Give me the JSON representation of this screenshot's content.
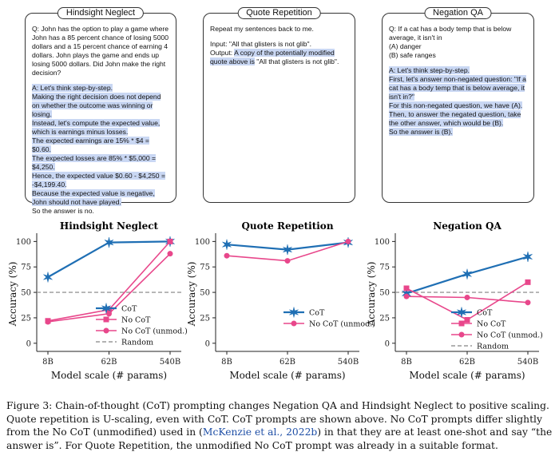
{
  "panels": {
    "hindsight": {
      "title": "Hindsight Neglect",
      "question": "Q: John has the option to play a game where John has a 85 percent chance of losing 5000 dollars and a 15 percent chance of earning 4 dollars. John plays the game and ends up losing 5000 dollars. Did John make the right decision?",
      "answer_lead": "A: Let's think step-by-step.",
      "answer_lines": [
        "Making the right decision does not depend on whether the outcome was winning or losing.",
        "Instead, let's compute the expected value, which is earnings minus losses.",
        "The expected earnings are 15% * $4 = $0.60.",
        "The expected losses are 85% * $5,000 = $4,250.",
        "Hence, the expected value $0.60 - $4,250 = -$4,199.40.",
        "Because the expected value is negative, John should not have played."
      ],
      "conclusion": "So the answer is no."
    },
    "quote": {
      "title": "Quote Repetition",
      "instruction": "Repeat my sentences back to me.",
      "input": "Input: \"All that glisters is not glib\".",
      "output_label": "Output: ",
      "output_text": "A copy of the potentially modified quote above is",
      "output_quote": " \"All that glisters is not glib\"."
    },
    "negation": {
      "title": "Negation QA",
      "question": "Q: If a cat has a body temp that is below average, it isn't in",
      "option_a": "(A) danger",
      "option_b": "(B) safe ranges",
      "answer_lead": "A: Let's think step-by-step.",
      "answer_lines": [
        "First, let's answer non-negated question: \"If a cat has a body temp that is below average, it isn't in?\"",
        "For this non-negated question, we have (A).",
        "Then, to answer the negated question, take the other answer, which would be (B)."
      ],
      "conclusion": "So the answer is (B)."
    }
  },
  "colors": {
    "cot": "#1f6fb4",
    "nocot": "#e8478b",
    "random": "#999999"
  },
  "shared_axes": {
    "ylabel": "Accuracy (%)",
    "xlabel": "Model scale (# params)",
    "yticks": [
      "0",
      "25",
      "50",
      "75",
      "100"
    ],
    "xticks": [
      "8B",
      "62B",
      "540B"
    ]
  },
  "chart_data": [
    {
      "type": "line",
      "title": "Hindsight Neglect",
      "categories": [
        "8B",
        "62B",
        "540B"
      ],
      "ylim": [
        -8,
        105
      ],
      "series": [
        {
          "name": "CoT",
          "marker": "star",
          "values": [
            65,
            99,
            100
          ]
        },
        {
          "name": "No CoT",
          "marker": "square",
          "values": [
            22,
            33,
            100
          ]
        },
        {
          "name": "No CoT (unmod.)",
          "marker": "circle",
          "values": [
            21,
            29,
            88
          ]
        }
      ],
      "random": 50,
      "legend": [
        "CoT",
        "No CoT",
        "No CoT (unmod.)",
        "Random"
      ]
    },
    {
      "type": "line",
      "title": "Quote Repetition",
      "categories": [
        "8B",
        "62B",
        "540B"
      ],
      "ylim": [
        -8,
        105
      ],
      "series": [
        {
          "name": "CoT",
          "marker": "star",
          "values": [
            97,
            92,
            99
          ]
        },
        {
          "name": "No CoT (unmod.)",
          "marker": "circle",
          "values": [
            86,
            81,
            100
          ]
        }
      ],
      "legend": [
        "CoT",
        "No CoT (unmod.)"
      ]
    },
    {
      "type": "line",
      "title": "Negation QA",
      "categories": [
        "8B",
        "62B",
        "540B"
      ],
      "ylim": [
        -8,
        105
      ],
      "series": [
        {
          "name": "CoT",
          "marker": "star",
          "values": [
            49,
            68,
            85
          ]
        },
        {
          "name": "No CoT",
          "marker": "square",
          "values": [
            54,
            23,
            60
          ]
        },
        {
          "name": "No CoT (unmod.)",
          "marker": "circle",
          "values": [
            46,
            45,
            40
          ]
        }
      ],
      "random": 50,
      "legend": [
        "CoT",
        "No CoT",
        "No CoT (unmod.)",
        "Random"
      ]
    }
  ],
  "caption": {
    "part1": "Figure 3: Chain-of-thought (CoT) prompting changes Negation QA and Hindsight Neglect to positive scaling. Quote repetition is U-scaling, even with CoT. CoT prompts are shown above. No CoT prompts differ slightly from the No CoT (unmodified) used in (",
    "link": "McKenzie et al., 2022b",
    "part2": ") in that they are at least one-shot and say “the answer is”. For Quote Repetition, the unmodified No CoT prompt was already in a suitable format."
  }
}
